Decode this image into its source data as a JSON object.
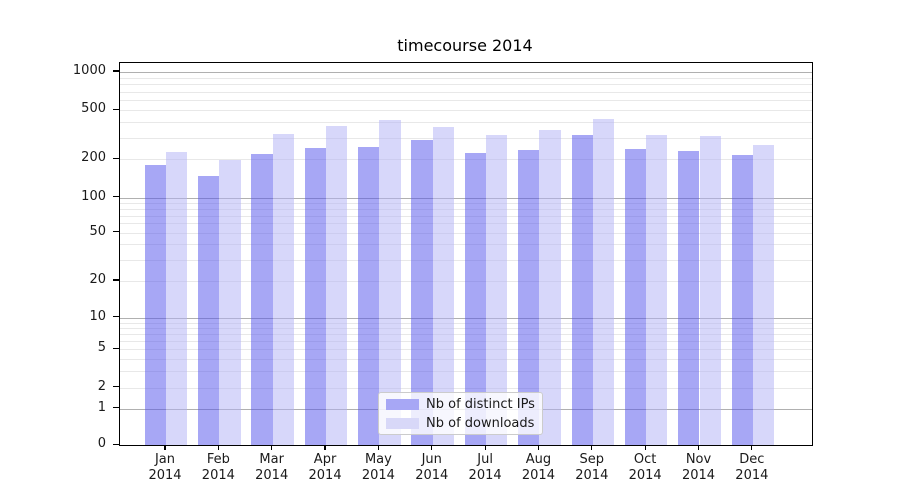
{
  "title": "timecourse 2014",
  "chart_data": {
    "type": "bar",
    "title": "timecourse 2014",
    "scale": "log-like (symlog with 0 baseline)",
    "grid": true,
    "legend_position": "lower center",
    "y_axis": {
      "ticks": [
        0,
        1,
        2,
        5,
        10,
        20,
        50,
        100,
        200,
        500,
        1000
      ],
      "ylim_top": 1180
    },
    "categories": [
      {
        "month": "Jan",
        "year": "2014"
      },
      {
        "month": "Feb",
        "year": "2014"
      },
      {
        "month": "Mar",
        "year": "2014"
      },
      {
        "month": "Apr",
        "year": "2014"
      },
      {
        "month": "May",
        "year": "2014"
      },
      {
        "month": "Jun",
        "year": "2014"
      },
      {
        "month": "Jul",
        "year": "2014"
      },
      {
        "month": "Aug",
        "year": "2014"
      },
      {
        "month": "Sep",
        "year": "2014"
      },
      {
        "month": "Oct",
        "year": "2014"
      },
      {
        "month": "Nov",
        "year": "2014"
      },
      {
        "month": "Dec",
        "year": "2014"
      }
    ],
    "series": [
      {
        "name": "Nb of distinct IPs",
        "color": "#a7a7f5",
        "fill": "rgba(80,80,235,0.5)",
        "values": [
          180,
          146,
          219,
          248,
          252,
          285,
          222,
          238,
          313,
          241,
          234,
          215
        ]
      },
      {
        "name": "Nb of downloads",
        "color": "#d8d8f8",
        "fill": "rgba(175,175,245,0.5)",
        "values": [
          230,
          195,
          318,
          372,
          415,
          361,
          313,
          344,
          424,
          313,
          310,
          261
        ]
      }
    ]
  },
  "colors": {
    "major_grid": "#b0b0b0",
    "minor_grid": "#e8e8e8",
    "spine": "#000000",
    "text": "#1a1a1a"
  }
}
